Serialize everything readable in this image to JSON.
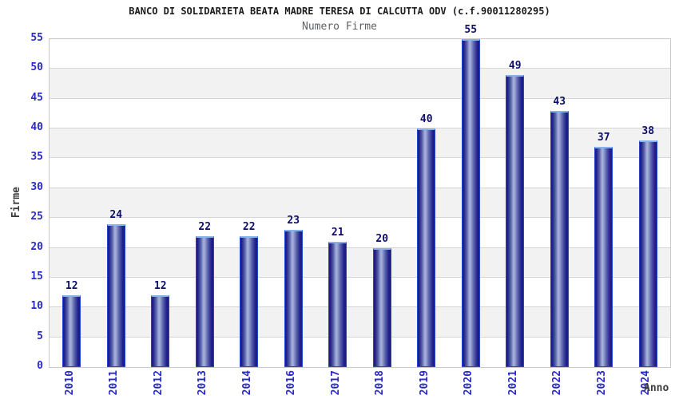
{
  "colors": {
    "tick_label": "#2929cc",
    "value_label": "#0d0d70",
    "bar_dark": "#191980",
    "bar_highlight": "#a9b2dc",
    "bar_border": "#2a46d4",
    "bar_top_border": "#85b4ea",
    "band_gray": "#f2f2f2",
    "gridline": "#d6d6d6",
    "title_color": "#1c1c1c",
    "subtitle_color": "#5d6167",
    "axis_title_color": "#3c3c3c"
  },
  "chart_data": {
    "type": "bar",
    "title": "BANCO DI SOLIDARIETA BEATA MADRE TERESA DI CALCUTTA ODV (c.f.90011280295)",
    "subtitle": "Numero Firme",
    "xlabel": "Anno",
    "ylabel": "Firme",
    "categories": [
      "2010",
      "2011",
      "2012",
      "2013",
      "2014",
      "2016",
      "2017",
      "2018",
      "2019",
      "2020",
      "2021",
      "2022",
      "2023",
      "2024"
    ],
    "values": [
      12,
      24,
      12,
      22,
      22,
      23,
      21,
      20,
      40,
      55,
      49,
      43,
      37,
      38
    ],
    "ylim": [
      0,
      55
    ],
    "ytick_step": 5,
    "grid": true,
    "alternating_bands": true,
    "legend": null,
    "x_tick_rotation_deg": 90
  }
}
